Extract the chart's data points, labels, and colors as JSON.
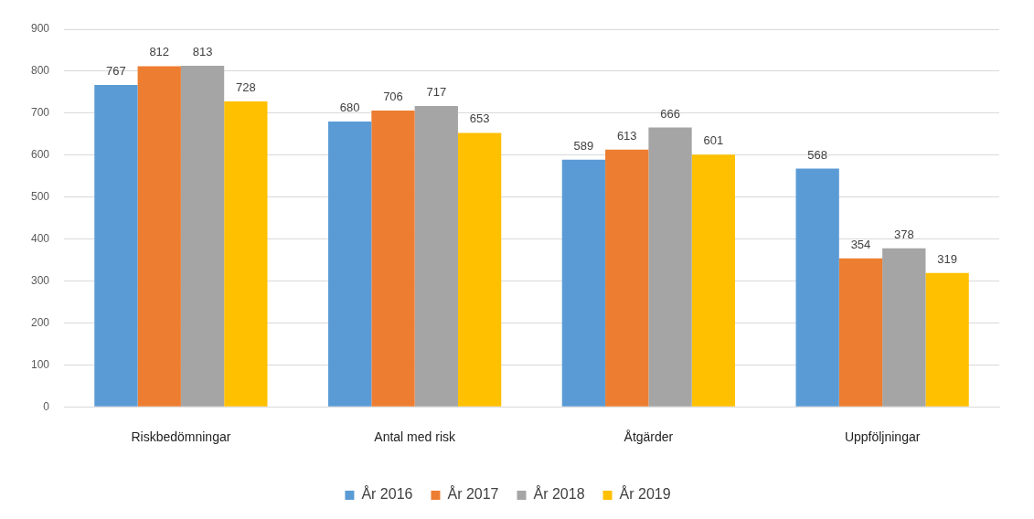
{
  "chart_data": {
    "type": "bar",
    "categories": [
      "Riskbedömningar",
      "Antal med risk",
      "Åtgärder",
      "Uppföljningar"
    ],
    "series": [
      {
        "name": "År 2016",
        "color": "#5b9bd5",
        "values": [
          767,
          680,
          589,
          568
        ]
      },
      {
        "name": "År 2017",
        "color": "#ed7d31",
        "values": [
          812,
          706,
          613,
          354
        ]
      },
      {
        "name": "År 2018",
        "color": "#a5a5a5",
        "values": [
          813,
          717,
          666,
          378
        ]
      },
      {
        "name": "År 2019",
        "color": "#ffc000",
        "values": [
          728,
          653,
          601,
          319
        ]
      }
    ],
    "ylim": [
      0,
      900
    ],
    "yticks": [
      0,
      100,
      200,
      300,
      400,
      500,
      600,
      700,
      800,
      900
    ],
    "grid": "y",
    "legend": "bottom",
    "data_labels": true
  }
}
